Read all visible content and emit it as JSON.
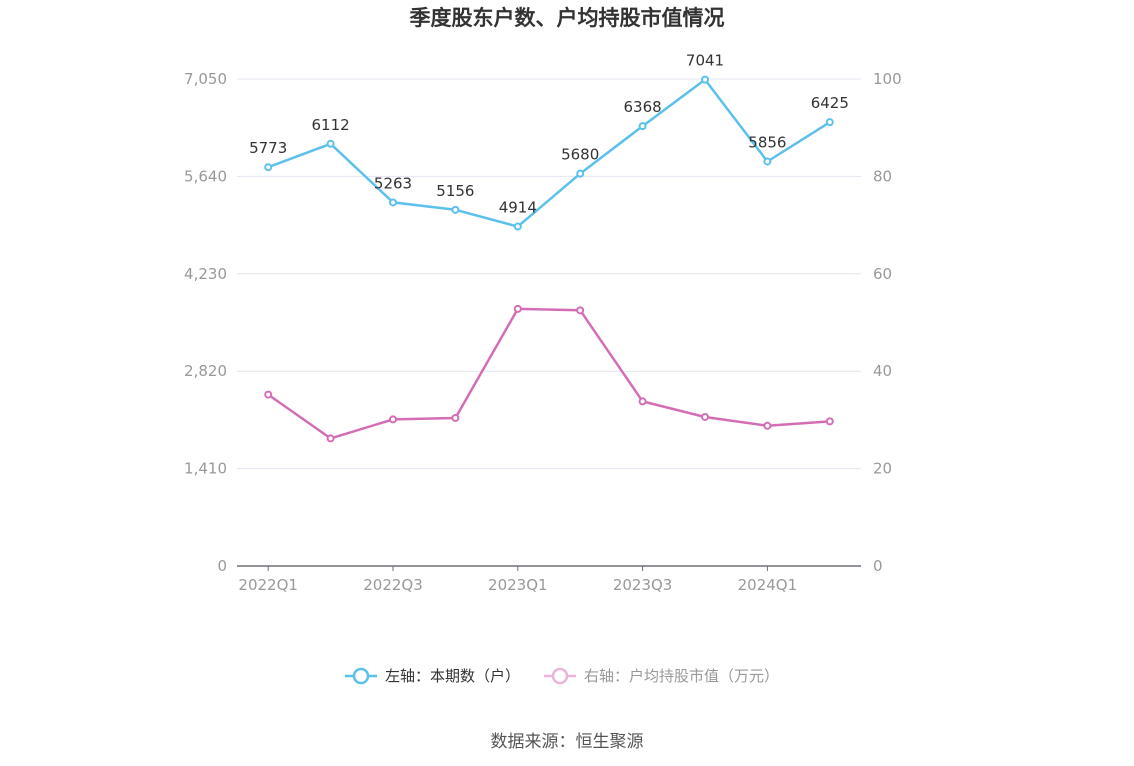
{
  "chart_data": {
    "type": "line",
    "title": "季度股东户数、户均持股市值情况",
    "categories": [
      "2022Q1",
      "2022Q2",
      "2022Q3",
      "2022Q4",
      "2023Q1",
      "2023Q2",
      "2023Q3",
      "2023Q4",
      "2024Q1",
      "2024Q2"
    ],
    "x_tick_labels": [
      "2022Q1",
      "2022Q3",
      "2023Q1",
      "2023Q3",
      "2024Q1"
    ],
    "left_axis": {
      "min": 0,
      "max": 7050,
      "ticks": [
        "0",
        "1,410",
        "2,820",
        "4,230",
        "5,640",
        "7,050"
      ]
    },
    "right_axis": {
      "min": 0,
      "max": 100,
      "ticks": [
        "0",
        "20",
        "40",
        "60",
        "80",
        "100"
      ]
    },
    "series": [
      {
        "name": "左轴：本期数（户）",
        "axis": "left",
        "color": "#5bc0eb",
        "values": [
          5773,
          6112,
          5263,
          5156,
          4914,
          5680,
          6368,
          7041,
          5856,
          6425
        ],
        "labels": [
          "5773",
          "6112",
          "5263",
          "5156",
          "4914",
          "5680",
          "6368",
          "7041",
          "5856",
          "6425"
        ]
      },
      {
        "name": "右轴：户均持股市值（万元）",
        "axis": "right",
        "color": "#d46eb4",
        "values": [
          35.2,
          26.2,
          30.1,
          30.4,
          52.8,
          52.5,
          33.8,
          30.6,
          28.8,
          29.7
        ]
      }
    ],
    "legend_position": "bottom-center",
    "grid": true
  },
  "source_text": "数据来源：恒生聚源"
}
